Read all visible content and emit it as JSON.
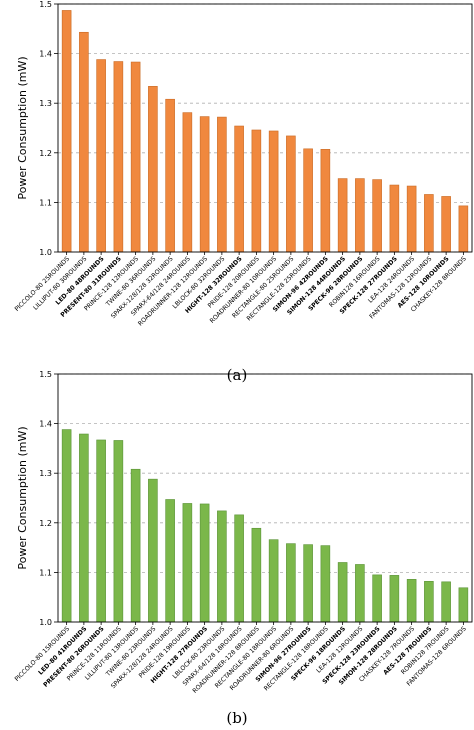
{
  "chart_data": [
    {
      "type": "bar",
      "caption": "(a)",
      "ylabel": "Power Consumption (mW)",
      "ylim": [
        1.0,
        1.5
      ],
      "yticks": [
        "1.0",
        "1.1",
        "1.2",
        "1.3",
        "1.4",
        "1.5"
      ],
      "grid": true,
      "color": "#f0883e",
      "edge_color": "#c96a24",
      "categories": [
        "PICCOLO-80 25ROUNDS",
        "LILLIPUT-80 30ROUNDS",
        "LED-80 48ROUNDS",
        "PRESENT-80 31ROUNDS",
        "PRINCE-128 12ROUNDS",
        "TWINE-80 36ROUNDS",
        "SPARX-128/128 32ROUNDS",
        "SPARX-64/128 24ROUNDS",
        "ROADRUNNER-128 12ROUNDS",
        "LBLOCK-80 32ROUNDS",
        "HIGHT-128 32ROUNDS",
        "PRIDE-128 20ROUNDS",
        "ROADRUNNER-80 10ROUNDS",
        "RECTANGLE-80 25ROUNDS",
        "RECTANGLE-128 25ROUNDS",
        "SIMON-96 42ROUNDS",
        "SIMON-128 44ROUNDS",
        "SPECK-96 28ROUNDS",
        "ROBIN128 16ROUNDS",
        "SPECK-128 27ROUNDS",
        "LEA-128 24ROUNDS",
        "FANTOMAS-128 12ROUNDS",
        "AES-128 10ROUNDS",
        "CHASKEY-128 8ROUNDS"
      ],
      "bold": [
        false,
        false,
        true,
        true,
        false,
        false,
        false,
        false,
        false,
        false,
        true,
        false,
        false,
        false,
        false,
        true,
        true,
        true,
        false,
        true,
        false,
        false,
        true,
        false
      ],
      "values": [
        1.487,
        1.443,
        1.388,
        1.384,
        1.383,
        1.334,
        1.308,
        1.281,
        1.273,
        1.272,
        1.254,
        1.246,
        1.244,
        1.234,
        1.208,
        1.207,
        1.148,
        1.148,
        1.146,
        1.135,
        1.133,
        1.116,
        1.112,
        1.093
      ]
    },
    {
      "type": "bar",
      "caption": "(b)",
      "ylabel": "Power Consumption  (mW)",
      "ylim": [
        1.0,
        1.5
      ],
      "yticks": [
        "1.0",
        "1.1",
        "1.2",
        "1.3",
        "1.4",
        "1.5"
      ],
      "grid": true,
      "color": "#7bb74a",
      "edge_color": "#5a9236",
      "categories": [
        "PICCOLO-80 15ROUNDS",
        "LED-80 41ROUNDS",
        "PRESENT-80 26ROUNDS",
        "PRINCE-128 11ROUNDS",
        "LILLIPUT-80 13ROUNDS",
        "TWINE-80 23ROUNDS",
        "SPARX-128/128 24ROUNDS",
        "PRIDE-128 19ROUNDS",
        "HIGHT-128 27ROUNDS",
        "LBLOCK-80 23ROUNDS",
        "SPARX-64/128 18ROUNDS",
        "ROADRUNNER-128 8ROUNDS",
        "RECTANGLE-80 18ROUNDS",
        "ROADRUNNER-80 6ROUNDS",
        "SIMON-96 27ROUNDS",
        "RECTANGLE-128 18ROUNDS",
        "SPECK-96 18ROUNDS",
        "LEA-128 12ROUNDS",
        "SPECK-128 23ROUNDS",
        "SIMON-128 28ROUNDS",
        "CHASKEY-128 7ROUNDS",
        "AES-128 7ROUNDS",
        "ROBIN128 7ROUNDS",
        "FANTOMAS-128 6ROUNDS"
      ],
      "bold": [
        false,
        true,
        true,
        false,
        false,
        false,
        false,
        false,
        true,
        false,
        false,
        false,
        false,
        false,
        true,
        false,
        true,
        false,
        true,
        true,
        false,
        true,
        false,
        false
      ],
      "values": [
        1.388,
        1.379,
        1.367,
        1.366,
        1.308,
        1.288,
        1.247,
        1.239,
        1.238,
        1.224,
        1.216,
        1.189,
        1.166,
        1.158,
        1.156,
        1.154,
        1.12,
        1.116,
        1.095,
        1.094,
        1.086,
        1.082,
        1.081,
        1.069
      ]
    }
  ]
}
